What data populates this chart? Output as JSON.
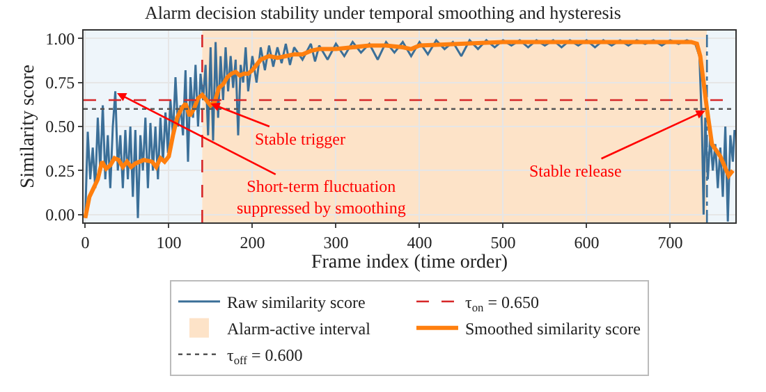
{
  "chart_data": {
    "type": "line",
    "title": "Alarm decision stability under temporal smoothing and hysteresis",
    "xlabel": "Frame index (time order)",
    "ylabel": "Similarity score",
    "xlim": [
      -2,
      778
    ],
    "xticks": [
      0,
      100,
      200,
      300,
      400,
      500,
      600,
      700
    ],
    "ylim": [
      -0.045,
      1.045
    ],
    "yticks": [
      {
        "value": 0,
        "label": "0.00"
      },
      {
        "value": 0.25,
        "label": "0.25"
      },
      {
        "value": 0.5,
        "label": "0.50"
      },
      {
        "value": 0.75,
        "label": "0.75"
      },
      {
        "value": 1,
        "label": "1.00"
      }
    ],
    "grid": true,
    "legend": "bottom",
    "series": [
      {
        "name": "Raw similarity score",
        "color": "#3b6f98",
        "x": [
          0,
          3,
          6,
          9,
          12,
          15,
          18,
          21,
          24,
          27,
          30,
          33,
          36,
          39,
          42,
          45,
          48,
          51,
          54,
          57,
          60,
          63,
          66,
          69,
          72,
          75,
          78,
          81,
          84,
          87,
          90,
          93,
          96,
          99,
          102,
          105,
          108,
          111,
          114,
          117,
          120,
          123,
          126,
          129,
          132,
          135,
          138,
          141,
          144,
          147,
          150,
          153,
          156,
          159,
          162,
          165,
          168,
          171,
          174,
          177,
          180,
          183,
          186,
          189,
          192,
          195,
          200,
          205,
          210,
          215,
          220,
          225,
          230,
          235,
          240,
          245,
          250,
          260,
          270,
          275,
          280,
          290,
          300,
          310,
          320,
          330,
          340,
          350,
          360,
          370,
          380,
          390,
          400,
          410,
          420,
          430,
          440,
          450,
          460,
          470,
          480,
          490,
          500,
          510,
          520,
          530,
          540,
          550,
          560,
          570,
          580,
          590,
          600,
          610,
          620,
          630,
          640,
          650,
          660,
          670,
          680,
          690,
          700,
          710,
          720,
          730,
          735,
          738,
          740,
          742,
          745,
          748,
          751,
          754,
          757,
          760,
          763,
          766,
          769,
          772,
          775,
          777
        ],
        "values": [
          -0.02,
          0.47,
          0.2,
          0.38,
          0.15,
          0.55,
          0.25,
          0.62,
          0.2,
          0.45,
          0.15,
          0.5,
          0.7,
          0.25,
          0.45,
          0.15,
          0.48,
          0.2,
          0.5,
          0.1,
          0.48,
          -0.02,
          0.45,
          0.25,
          0.55,
          0.15,
          0.52,
          0.25,
          0.5,
          0.2,
          0.55,
          0.3,
          0.58,
          0.35,
          0.65,
          0.45,
          0.78,
          0.5,
          0.62,
          0.45,
          0.82,
          0.3,
          0.78,
          0.55,
          0.85,
          0.5,
          0.8,
          0.65,
          0.85,
          0.45,
          0.95,
          0.42,
          0.98,
          0.55,
          0.9,
          0.65,
          0.95,
          0.7,
          0.9,
          0.72,
          0.88,
          0.45,
          0.85,
          0.75,
          0.95,
          0.7,
          0.9,
          0.75,
          0.95,
          0.82,
          0.96,
          0.84,
          0.95,
          0.86,
          0.97,
          0.85,
          0.95,
          0.88,
          0.97,
          0.87,
          0.96,
          0.88,
          0.97,
          0.9,
          0.98,
          0.92,
          0.97,
          0.88,
          0.98,
          0.92,
          0.98,
          0.9,
          0.98,
          0.91,
          0.99,
          0.94,
          0.98,
          0.9,
          0.99,
          0.94,
          0.99,
          0.95,
          0.99,
          0.96,
          0.99,
          0.95,
          0.99,
          0.96,
          0.99,
          0.95,
          0.99,
          0.96,
          0.99,
          0.95,
          0.99,
          0.96,
          0.99,
          0.96,
          0.99,
          0.97,
          0.99,
          0.96,
          0.99,
          0.97,
          0.99,
          0.97,
          0.9,
          0.5,
          0.0,
          0.55,
          0.2,
          0.45,
          0.25,
          0.4,
          0.15,
          0.38,
          0.1,
          0.5,
          -0.04,
          0.45,
          0.3,
          0.48
        ]
      },
      {
        "name": "Smoothed similarity score",
        "color": "#ff7f0e",
        "x": [
          0,
          5,
          10,
          15,
          20,
          25,
          30,
          35,
          40,
          45,
          50,
          55,
          60,
          70,
          80,
          85,
          90,
          95,
          100,
          105,
          110,
          115,
          120,
          125,
          130,
          135,
          140,
          145,
          150,
          155,
          160,
          165,
          170,
          175,
          180,
          185,
          190,
          195,
          200,
          210,
          220,
          230,
          240,
          250,
          260,
          270,
          280,
          300,
          320,
          340,
          360,
          380,
          390,
          400,
          450,
          500,
          550,
          600,
          650,
          700,
          725,
          732,
          736,
          740,
          744,
          750,
          760,
          770,
          775
        ],
        "values": [
          -0.02,
          0.1,
          0.15,
          0.2,
          0.3,
          0.26,
          0.28,
          0.32,
          0.31,
          0.27,
          0.3,
          0.27,
          0.29,
          0.31,
          0.3,
          0.27,
          0.32,
          0.3,
          0.33,
          0.45,
          0.55,
          0.6,
          0.63,
          0.56,
          0.6,
          0.66,
          0.68,
          0.65,
          0.62,
          0.64,
          0.72,
          0.74,
          0.78,
          0.8,
          0.81,
          0.79,
          0.8,
          0.8,
          0.82,
          0.88,
          0.9,
          0.89,
          0.9,
          0.91,
          0.91,
          0.93,
          0.94,
          0.94,
          0.95,
          0.96,
          0.96,
          0.95,
          0.94,
          0.96,
          0.97,
          0.98,
          0.98,
          0.98,
          0.98,
          0.98,
          0.98,
          0.97,
          0.9,
          0.75,
          0.6,
          0.4,
          0.33,
          0.22,
          0.25
        ]
      }
    ],
    "ref_lines": [
      {
        "axis": "y",
        "value": 0.65,
        "label": "τ$_{on}$ = 0.650",
        "color": "#d62728",
        "line_style": "dashed"
      },
      {
        "axis": "y",
        "value": 0.6,
        "label": "τ$_{off}$ = 0.600",
        "color": "#555555",
        "line_style": "dotted"
      },
      {
        "axis": "x",
        "value": 140,
        "color": "#d62728",
        "line_style": "dashed"
      },
      {
        "axis": "x",
        "value": 744,
        "color": "#3b6f98",
        "line_style": "dashdot"
      }
    ],
    "bands": [
      {
        "axis": "x",
        "from": -2,
        "to": 140,
        "color": "#eef5fa"
      },
      {
        "axis": "x",
        "from": 140,
        "to": 744,
        "label": "Alarm-active interval",
        "color": "#fde3c8"
      },
      {
        "axis": "x",
        "from": 744,
        "to": 778,
        "color": "#eef5fa"
      }
    ],
    "annotations": [
      {
        "text": "Stable trigger",
        "x": 150,
        "y": 0.63
      },
      {
        "text": "Short-term fluctuation\nsuppressed by smoothing",
        "x": 38,
        "y": 0.69
      },
      {
        "text": "Stable release",
        "x": 742,
        "y": 0.59
      }
    ]
  }
}
